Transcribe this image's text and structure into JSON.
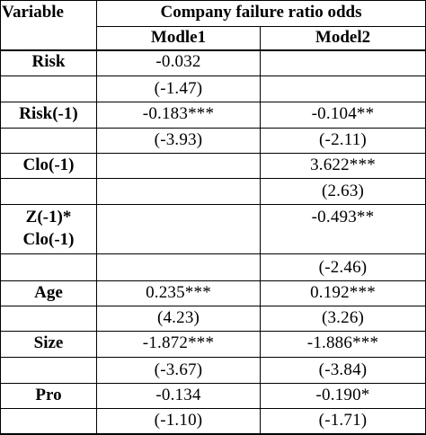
{
  "header": {
    "variable": "Variable",
    "group_title": "Company failure ratio odds",
    "model1": "Modle1",
    "model2": "Model2"
  },
  "rows": [
    {
      "label": "Risk",
      "m1": "-0.032",
      "m2": ""
    },
    {
      "label": "",
      "m1": "(-1.47)",
      "m2": ""
    },
    {
      "label": "Risk(-1)",
      "m1": "-0.183***",
      "m2": "-0.104**"
    },
    {
      "label": "",
      "m1": "(-3.93)",
      "m2": "(-2.11)"
    },
    {
      "label": "Clo(-1)",
      "m1": "",
      "m2": "3.622***"
    },
    {
      "label": "",
      "m1": "",
      "m2": "(2.63)"
    },
    {
      "label": "Z(-1)*",
      "label2": "Clo(-1)",
      "m1": "",
      "m2": "-0.493**"
    },
    {
      "label": "",
      "m1": "",
      "m2": "(-2.46)"
    },
    {
      "label": "Age",
      "m1": "0.235***",
      "m2": "0.192***"
    },
    {
      "label": "",
      "m1": "(4.23)",
      "m2": "(3.26)"
    },
    {
      "label": "Size",
      "m1": "-1.872***",
      "m2": "-1.886***"
    },
    {
      "label": "",
      "m1": "(-3.67)",
      "m2": "(-3.84)"
    },
    {
      "label": "Pro",
      "m1": "-0.134",
      "m2": "-0.190*"
    },
    {
      "label": "",
      "m1": "(-1.10)",
      "m2": "(-1.71)"
    }
  ]
}
